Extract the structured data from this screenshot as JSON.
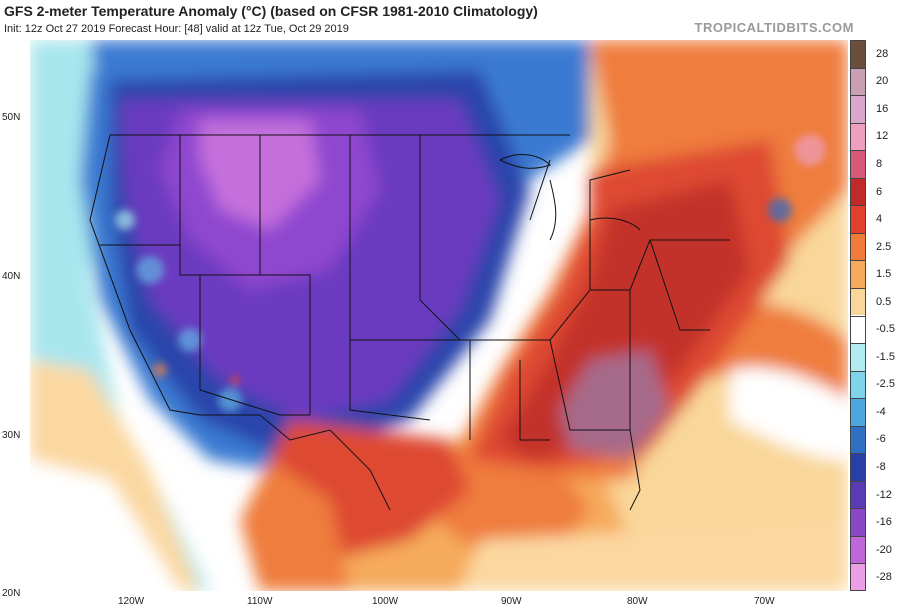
{
  "header": {
    "title": "GFS 2-meter Temperature Anomaly (°C) (based on CFSR 1981-2010 Climatology)",
    "subtitle": "Init: 12z Oct 27 2019   Forecast Hour: [48]   valid at 12z Tue, Oct 29 2019",
    "credit": "TROPICALTIDBITS.COM"
  },
  "axes": {
    "lat_labels": [
      "50N",
      "40N",
      "30N",
      "20N"
    ],
    "lon_labels": [
      "120W",
      "110W",
      "100W",
      "90W",
      "80W",
      "70W"
    ]
  },
  "colorbar": {
    "labels": [
      "28",
      "20",
      "16",
      "12",
      "8",
      "6",
      "4",
      "2.5",
      "1.5",
      "0.5",
      "-0.5",
      "-1.5",
      "-2.5",
      "-4",
      "-6",
      "-8",
      "-12",
      "-16",
      "-20",
      "-28"
    ],
    "colors": [
      "#6b4e3c",
      "#c99fb3",
      "#d9a6cc",
      "#ef9ec0",
      "#d65a78",
      "#c22a2a",
      "#e3402c",
      "#f07a3a",
      "#f6aa5c",
      "#f9d79a",
      "#ffffff",
      "#b2ecf0",
      "#7fd3ea",
      "#4ba7de",
      "#2f6fc4",
      "#2a3ea8",
      "#5b3bb4",
      "#8a48c9",
      "#bf66d9",
      "#ea9fe6"
    ]
  },
  "map": {
    "colors": {
      "ocean_neutral": "#ffffff",
      "deep_purple": "#6a3bc0",
      "violet": "#8f46cf",
      "magenta": "#c470dc",
      "dark_blue": "#2c44ab",
      "blue": "#3a7ad2",
      "light_blue": "#63b3e3",
      "cyan": "#a8e6ee",
      "red_dark": "#c3302c",
      "red": "#de4a32",
      "orange": "#ef7d3e",
      "light_orange": "#f6aa5c",
      "pale": "#fbd8a0",
      "mauve": "#a66a8a",
      "border_line": "#111111"
    }
  }
}
